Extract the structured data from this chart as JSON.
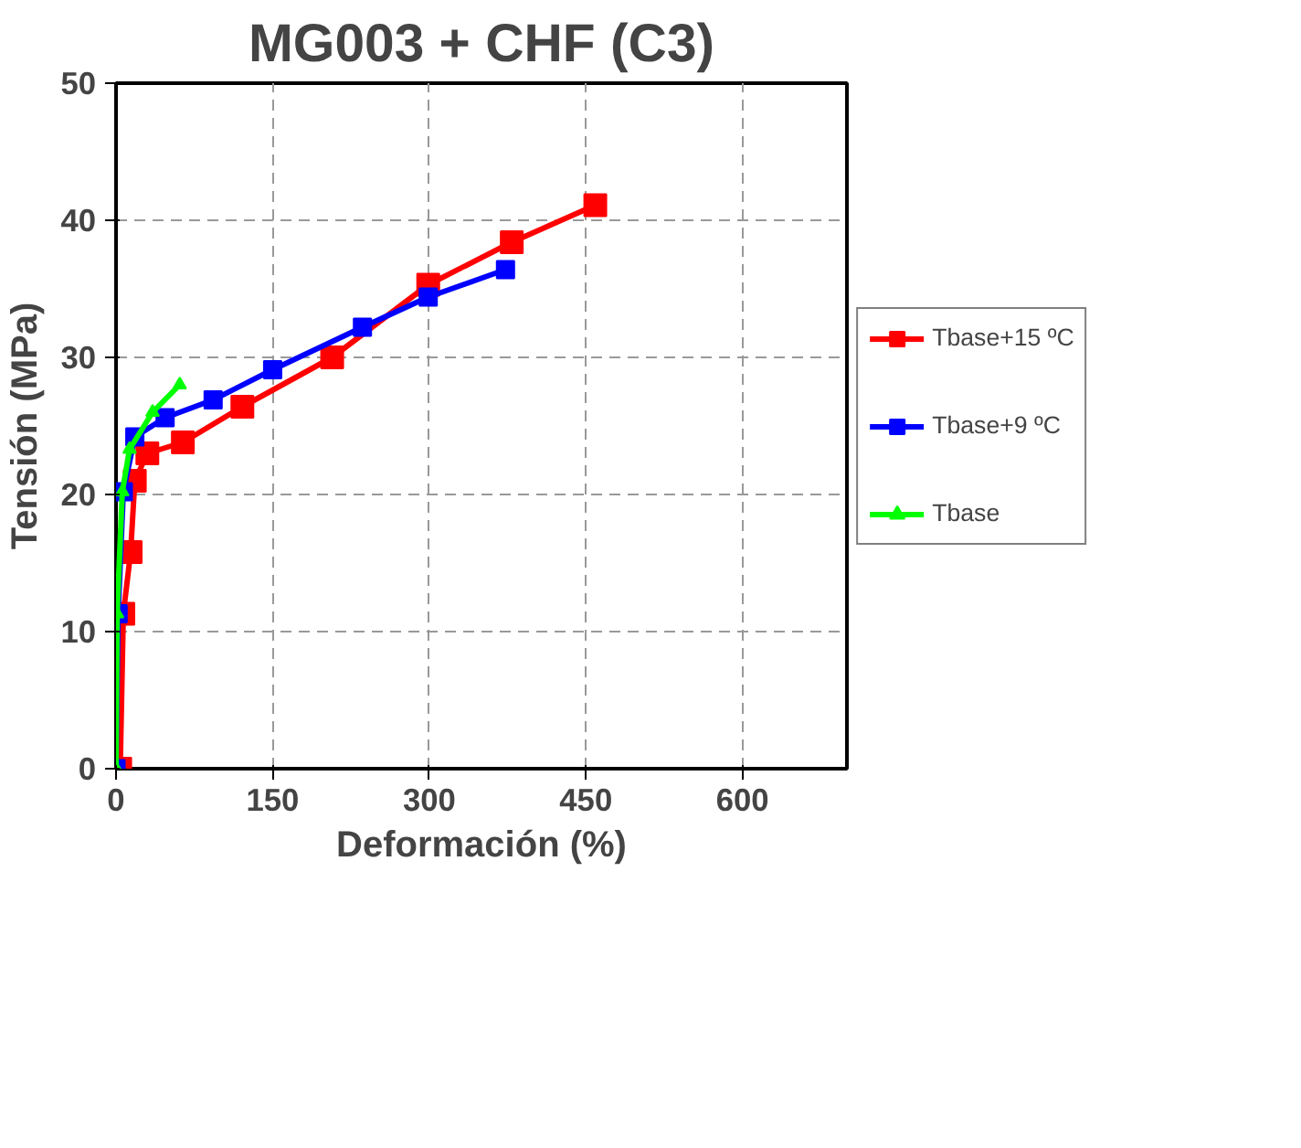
{
  "chart_data": {
    "type": "line",
    "title": "MG003 + CHF (C3)",
    "xlabel": "Deformación (%)",
    "ylabel": "Tensión (MPa)",
    "xlim": [
      0,
      700
    ],
    "xticks": [
      0,
      150,
      300,
      450,
      600
    ],
    "ylim": [
      0,
      50
    ],
    "yticks": [
      0,
      10,
      20,
      30,
      40,
      50
    ],
    "grid": true,
    "legend": "right",
    "line_style": "solid",
    "series": [
      {
        "name": "Tbase+15 ºC",
        "color": "#ff0000",
        "marker": "square",
        "x": [
          4,
          7,
          14,
          18,
          30,
          64,
          121,
          207,
          299,
          379,
          459
        ],
        "values": [
          0,
          11.3,
          15.8,
          21,
          23,
          23.8,
          26.4,
          30,
          35.3,
          38.4,
          41.1
        ]
      },
      {
        "name": "Tbase+9 ºC",
        "color": "#0000ff",
        "marker": "square",
        "x": [
          0,
          2,
          7,
          18,
          47,
          93,
          150,
          236,
          299,
          373
        ],
        "values": [
          0,
          11.3,
          20.2,
          24.2,
          25.6,
          26.9,
          29.1,
          32.2,
          34.4,
          36.4
        ]
      },
      {
        "name": "Tbase",
        "color": "#00ff00",
        "marker": "triangle",
        "x": [
          0,
          1,
          6,
          13,
          35,
          61
        ],
        "values": [
          0,
          11.3,
          20.2,
          23.3,
          26,
          28
        ]
      }
    ]
  }
}
